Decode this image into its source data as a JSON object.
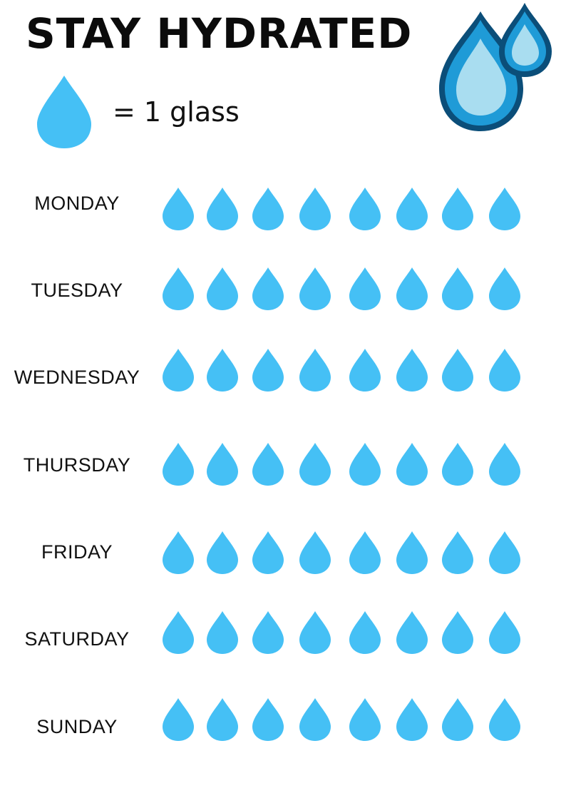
{
  "title": "STAY HYDRATED",
  "legend": {
    "text": "= 1 glass",
    "icon": "water-drop-icon"
  },
  "colors": {
    "drop": "#45C0F5",
    "hero_outline": "#0B4E79",
    "hero_mid": "#1F9BD7",
    "hero_light": "#A9DDF0"
  },
  "days": [
    {
      "label": "MONDAY",
      "glasses": 8
    },
    {
      "label": "TUESDAY",
      "glasses": 8
    },
    {
      "label": "WEDNESDAY",
      "glasses": 8
    },
    {
      "label": "THURSDAY",
      "glasses": 8
    },
    {
      "label": "FRIDAY",
      "glasses": 8
    },
    {
      "label": "SATURDAY",
      "glasses": 8
    },
    {
      "label": "SUNDAY",
      "glasses": 8
    }
  ]
}
